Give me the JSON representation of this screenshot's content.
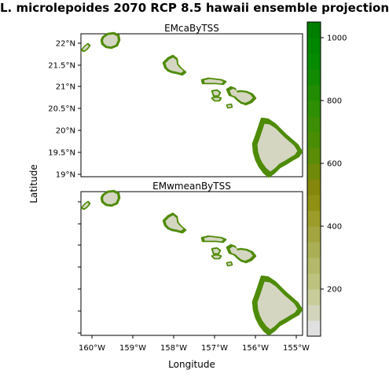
{
  "title": "L. microlepoides 2070 RCP 8.5 hawaii ensemble projection",
  "xlabel": "Longitude",
  "ylabel": "Latitude",
  "panels": [
    {
      "name": "EMcaByTSS"
    },
    {
      "name": "EMwmeanByTSS"
    }
  ],
  "x_ticks": [
    "160°W",
    "159°W",
    "158°W",
    "157°W",
    "156°W",
    "155°W"
  ],
  "y_ticks": [
    "22°N",
    "21.5°N",
    "21°N",
    "20.5°N",
    "20°N",
    "19.5°N",
    "19°N"
  ],
  "colorbar": {
    "ticks": [
      "1000",
      "800",
      "600",
      "400",
      "200"
    ],
    "min": 50,
    "max": 1050,
    "colors": [
      "#e0e0e0",
      "#d2d4bc",
      "#c8cc9a",
      "#bdc27e",
      "#b4b86a",
      "#aaae55",
      "#a3a540",
      "#9c9c2a",
      "#8f9014",
      "#85870c",
      "#6e8a08",
      "#5a8c06",
      "#4a8d05",
      "#3d8e04",
      "#2e8f03",
      "#218c02",
      "#128a02",
      "#068a00",
      "#008600",
      "#007e00"
    ],
    "ocean_color": "#ffffff",
    "land_low_color": "#d5d6c2",
    "land_high_color": "#4e8b06"
  }
}
